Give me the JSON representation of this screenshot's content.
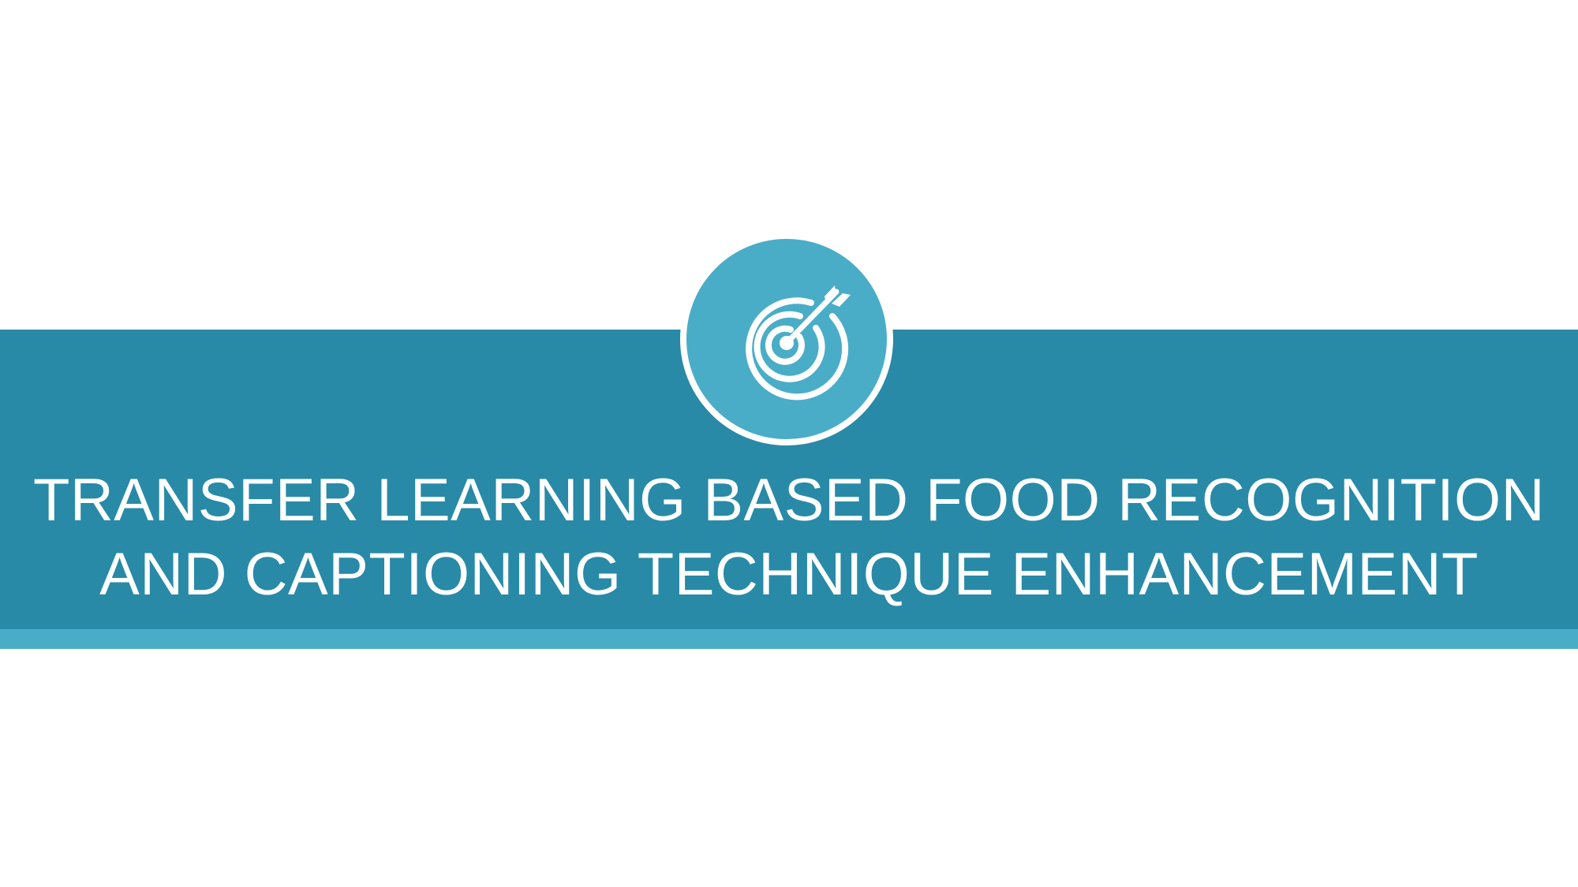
{
  "slide": {
    "title_lines": [
      "TRANSFER LEARNING BASED FOOD RECOGNITION",
      "AND CAPTIONING TECHNIQUE ENHANCEMENT"
    ],
    "icon": "target-with-arrow-icon"
  },
  "colors": {
    "band": "#288aa6",
    "accent": "#4aadc7",
    "text": "#ffffff",
    "background": "#ffffff"
  }
}
